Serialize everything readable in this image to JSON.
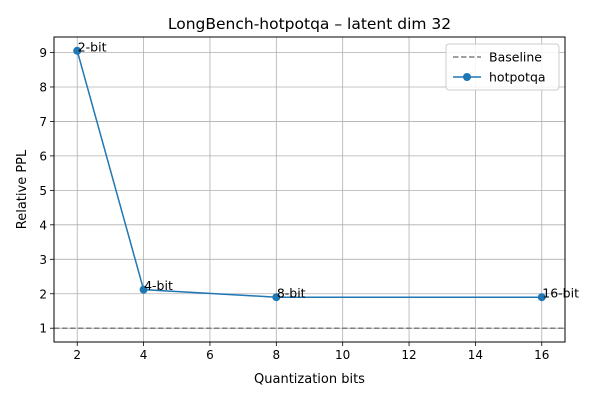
{
  "chart_data": {
    "type": "line",
    "title": "LongBench-hotpotqa – latent dim 32",
    "xlabel": "Quantization bits",
    "ylabel": "Relative PPL",
    "xlim": [
      1.3,
      16.7
    ],
    "ylim": [
      0.6,
      9.45
    ],
    "xticks": [
      2,
      4,
      6,
      8,
      10,
      12,
      14,
      16
    ],
    "yticks": [
      1,
      2,
      3,
      4,
      5,
      6,
      7,
      8,
      9
    ],
    "grid": true,
    "legend_position": "top-right",
    "series": [
      {
        "name": "Baseline",
        "style": "dashed",
        "color": "#808080",
        "y_constant": 1.0
      },
      {
        "name": "hotpotqa",
        "style": "solid-marker",
        "color": "#1f77b4",
        "x": [
          2,
          4,
          8,
          16
        ],
        "y": [
          9.05,
          2.12,
          1.9,
          1.9
        ],
        "annotations": [
          "2-bit",
          "4-bit",
          "8-bit",
          "16-bit"
        ]
      }
    ]
  }
}
